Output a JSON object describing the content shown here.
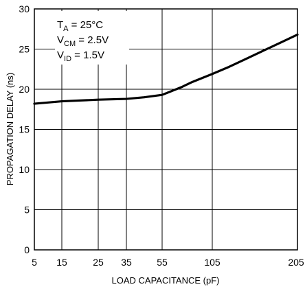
{
  "chart_data": {
    "type": "line",
    "xlabel": "LOAD CAPACITANCE (pF)",
    "ylabel": "PROPAGATION DELAY (ns)",
    "x_ticks": [
      "5",
      "15",
      "25",
      "35",
      "55",
      "105",
      "205"
    ],
    "y_ticks": [
      "0",
      "5",
      "10",
      "15",
      "20",
      "25",
      "30"
    ],
    "ylim": [
      0,
      30
    ],
    "grid": true,
    "annotation": [
      {
        "main": "T",
        "sub": "A",
        "rest": " = 25°C"
      },
      {
        "main": "V",
        "sub": "CM",
        "rest": " = 2.5V"
      },
      {
        "main": "V",
        "sub": "ID",
        "rest": " = 1.5V"
      }
    ],
    "series": [
      {
        "x": [
          5,
          15,
          25,
          35,
          45,
          55,
          65,
          75,
          85,
          105,
          125,
          145,
          165,
          185,
          205
        ],
        "values": [
          18.2,
          18.5,
          18.7,
          18.8,
          19.0,
          19.3,
          19.8,
          20.3,
          20.9,
          21.9,
          22.8,
          23.8,
          24.8,
          25.8,
          26.8
        ]
      }
    ]
  }
}
